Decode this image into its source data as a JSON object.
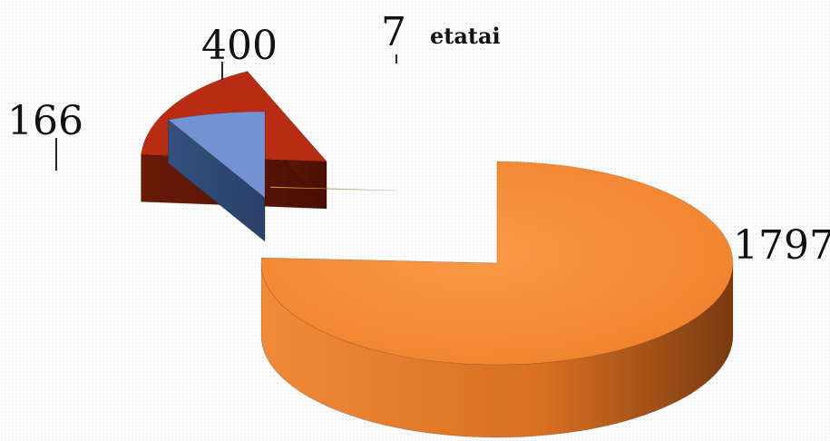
{
  "chart_data": {
    "type": "pie",
    "style": "3d-exploded",
    "slices": [
      {
        "value": 1797,
        "label": "1797",
        "color": "#f0862f"
      },
      {
        "value": 7,
        "label": "7",
        "category": "etatai",
        "color": "#e8b93c"
      },
      {
        "value": 400,
        "label": "400",
        "color": "#b52a12"
      },
      {
        "value": 166,
        "label": "166",
        "color": "#6f8fd0"
      }
    ],
    "legend": "none",
    "grid": false
  }
}
